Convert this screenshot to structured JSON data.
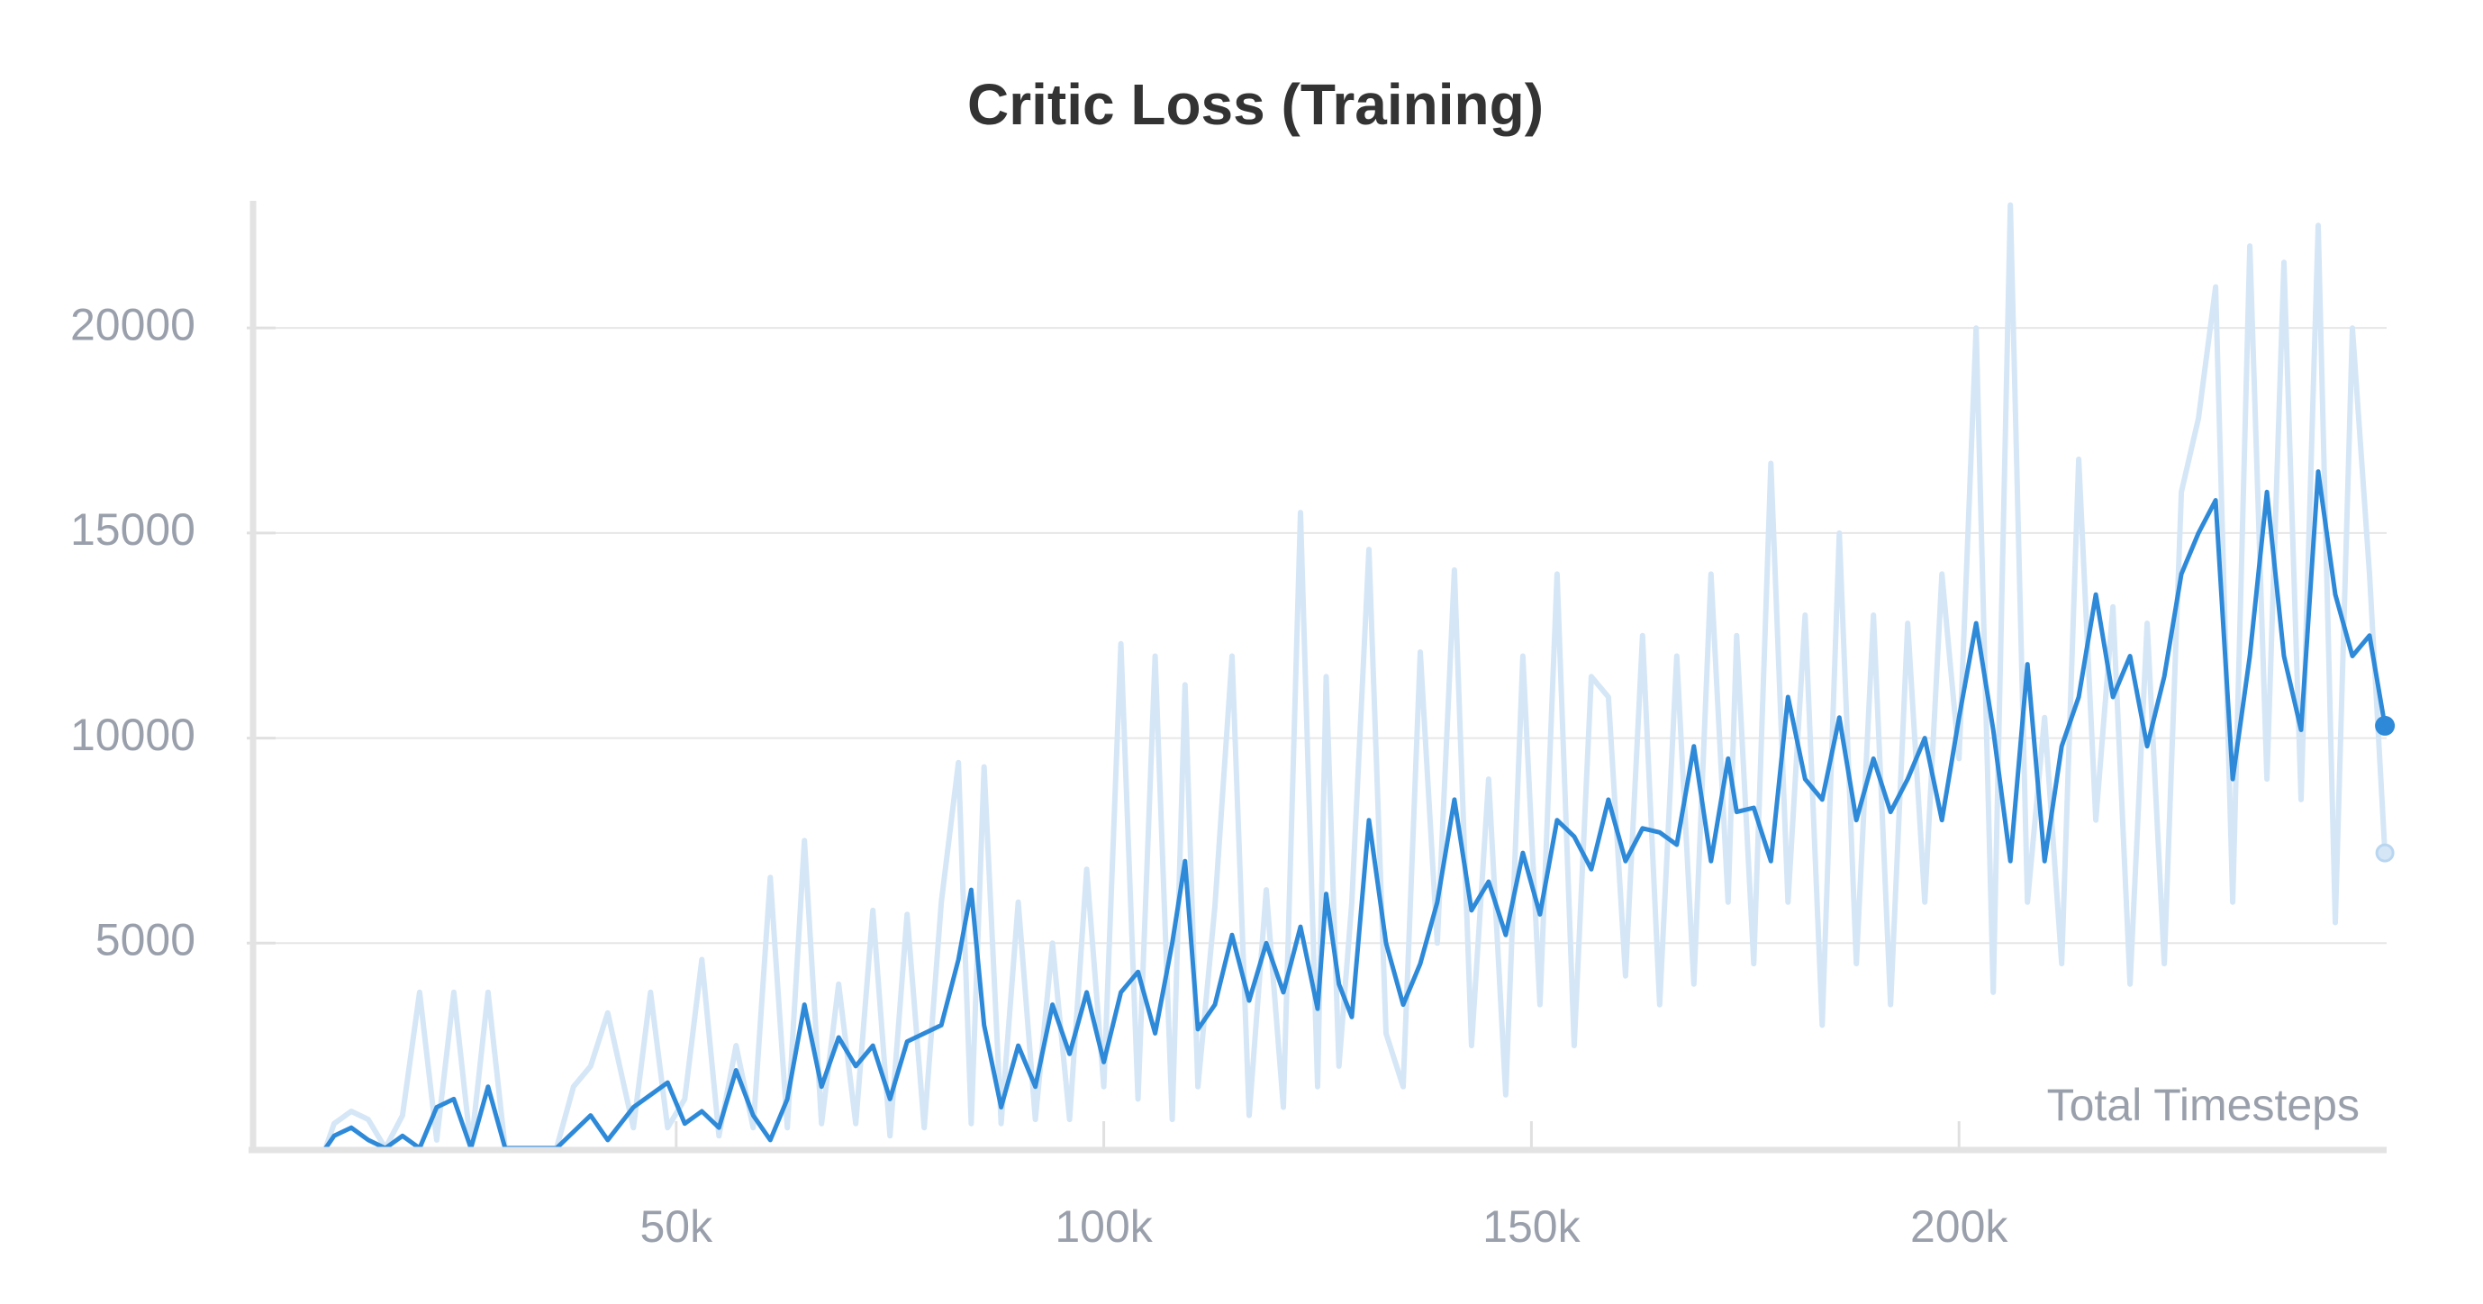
{
  "chart_data": {
    "type": "line",
    "title": "Critic Loss (Training)",
    "xlabel": "Total Timesteps",
    "x": [
      9000,
      10000,
      12000,
      14000,
      16000,
      18000,
      20000,
      22000,
      24000,
      26000,
      28000,
      30000,
      33000,
      36000,
      38000,
      40000,
      42000,
      45000,
      47000,
      49000,
      51000,
      53000,
      55000,
      57000,
      59000,
      61000,
      63000,
      65000,
      67000,
      69000,
      71000,
      73000,
      75000,
      77000,
      79000,
      81000,
      83000,
      84500,
      86000,
      88000,
      90000,
      92000,
      94000,
      96000,
      98000,
      100000,
      102000,
      104000,
      106000,
      108000,
      109500,
      111000,
      113000,
      115000,
      117000,
      119000,
      121000,
      123000,
      125000,
      126000,
      127500,
      129000,
      131000,
      133000,
      135000,
      137000,
      139000,
      141000,
      143000,
      145000,
      147000,
      149000,
      151000,
      153000,
      155000,
      157000,
      159000,
      161000,
      163000,
      165000,
      167000,
      169000,
      171000,
      173000,
      174000,
      176000,
      178000,
      180000,
      182000,
      184000,
      186000,
      188000,
      190000,
      192000,
      194000,
      196000,
      198000,
      200000,
      202000,
      204000,
      206000,
      208000,
      210000,
      212000,
      214000,
      216000,
      218000,
      220000,
      222000,
      224000,
      226000,
      228000,
      230000,
      232000,
      234000,
      236000,
      238000,
      240000,
      242000,
      244000,
      246000,
      248000,
      249800
    ],
    "series": [
      {
        "color": "#d5e6f6",
        "values": [
          0,
          600,
          900,
          700,
          0,
          800,
          3800,
          200,
          3800,
          0,
          3800,
          0,
          0,
          0,
          1500,
          2000,
          3300,
          500,
          3800,
          500,
          1200,
          4600,
          300,
          2500,
          500,
          6600,
          500,
          7500,
          600,
          4000,
          600,
          5800,
          300,
          5700,
          500,
          6000,
          9400,
          600,
          9300,
          600,
          6000,
          700,
          5000,
          700,
          6800,
          1500,
          12300,
          1200,
          12000,
          700,
          11300,
          1500,
          5900,
          12000,
          800,
          6300,
          1000,
          15500,
          1500,
          11500,
          2000,
          6000,
          14600,
          2800,
          1500,
          12100,
          5000,
          14100,
          2500,
          9000,
          1300,
          12000,
          3500,
          14000,
          2500,
          11500,
          11000,
          4200,
          12500,
          3500,
          12000,
          4000,
          14000,
          6000,
          12500,
          4500,
          16700,
          6000,
          13000,
          3000,
          15000,
          4500,
          13000,
          3500,
          12800,
          6000,
          14000,
          9500,
          20000,
          3800,
          23000,
          6000,
          10500,
          4500,
          16800,
          8000,
          13200,
          4000,
          12800,
          4500,
          16000,
          17800,
          21000,
          6000,
          22000,
          9000,
          21600,
          8500,
          22500,
          5500,
          20000,
          14000,
          7200
        ]
      },
      {
        "color": "#2e8ad8",
        "values": [
          0,
          300,
          500,
          200,
          0,
          300,
          0,
          1000,
          1200,
          0,
          1500,
          0,
          0,
          0,
          400,
          800,
          200,
          1000,
          1300,
          1600,
          600,
          900,
          500,
          1900,
          800,
          200,
          1200,
          3500,
          1500,
          2700,
          2000,
          2500,
          1200,
          2600,
          2800,
          3000,
          4600,
          6300,
          3000,
          1000,
          2500,
          1500,
          3500,
          2300,
          3800,
          2100,
          3800,
          4300,
          2800,
          5000,
          7000,
          2900,
          3500,
          5200,
          3600,
          5000,
          3800,
          5400,
          3400,
          6200,
          4000,
          3200,
          8000,
          5000,
          3500,
          4500,
          6000,
          8500,
          5800,
          6500,
          5200,
          7200,
          5700,
          8000,
          7600,
          6800,
          8500,
          7000,
          7800,
          7700,
          7400,
          9800,
          7000,
          9500,
          8200,
          8300,
          7000,
          11000,
          9000,
          8500,
          10500,
          8000,
          9500,
          8200,
          9000,
          10000,
          8000,
          10500,
          12800,
          10200,
          7000,
          11800,
          7000,
          9800,
          11000,
          13500,
          11000,
          12000,
          9800,
          11500,
          14000,
          15000,
          15800,
          9000,
          12000,
          16000,
          12000,
          10200,
          16500,
          13500,
          12000,
          12500,
          10300
        ]
      }
    ],
    "xlim": [
      0,
      250000
    ],
    "ylim": [
      0,
      23100
    ],
    "xticks": [
      {
        "value": 50000,
        "label": "50k"
      },
      {
        "value": 100000,
        "label": "100k"
      },
      {
        "value": 150000,
        "label": "150k"
      },
      {
        "value": 200000,
        "label": "200k"
      }
    ],
    "yticks": [
      5000,
      10000,
      15000,
      20000
    ],
    "grid": true
  }
}
